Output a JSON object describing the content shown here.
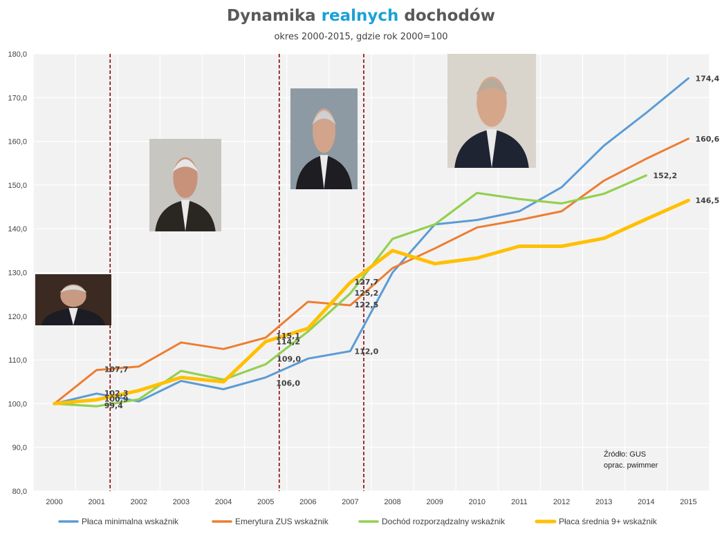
{
  "title": {
    "part1": "Dynamika ",
    "accent": "realnych",
    "part2": " dochodów"
  },
  "subtitle": "okres 2000-2015, gdzie rok 2000=100",
  "source": {
    "line1": "Źródło: GUS",
    "line2": "oprac. pwimmer"
  },
  "photos": [
    {
      "name": "portrait-photo-1"
    },
    {
      "name": "portrait-photo-2"
    },
    {
      "name": "portrait-photo-3"
    },
    {
      "name": "portrait-photo-4"
    }
  ],
  "chart_data": {
    "type": "line",
    "title": "Dynamika realnych dochodów",
    "subtitle": "okres 2000-2015, gdzie rok 2000=100",
    "xlabel": "",
    "ylabel": "",
    "ylim": [
      80,
      180
    ],
    "yticks": [
      "80,0",
      "90,0",
      "100,0",
      "110,0",
      "120,0",
      "130,0",
      "140,0",
      "150,0",
      "160,0",
      "170,0",
      "180,0"
    ],
    "categories": [
      "2000",
      "2001",
      "2002",
      "2003",
      "2004",
      "2005",
      "2006",
      "2007",
      "2008",
      "2009",
      "2010",
      "2011",
      "2012",
      "2013",
      "2014",
      "2015"
    ],
    "grid": true,
    "legend_position": "bottom",
    "vertical_markers_after": [
      "2001",
      "2005",
      "2007"
    ],
    "series": [
      {
        "name": "Płaca minimalna wskaźnik",
        "color": "#5b9bd5",
        "values": [
          100.0,
          102.3,
          100.5,
          105.2,
          103.3,
          106.0,
          110.3,
          112.0,
          130.0,
          141.0,
          142.0,
          144.0,
          149.5,
          159.0,
          166.5,
          174.4
        ],
        "labels": [
          [
            1,
            "102,3"
          ],
          [
            5,
            "106,0"
          ],
          [
            7,
            "112,0"
          ],
          [
            15,
            "174,4"
          ]
        ]
      },
      {
        "name": "Emerytura ZUS wskaźnik",
        "color": "#ed7d31",
        "values": [
          100.0,
          107.7,
          108.5,
          114.0,
          112.5,
          115.1,
          123.3,
          122.5,
          131.0,
          135.5,
          140.3,
          142.0,
          144.0,
          151.0,
          156.0,
          160.6
        ],
        "labels": [
          [
            1,
            "107,7"
          ],
          [
            5,
            "115,1"
          ],
          [
            7,
            "122,5"
          ],
          [
            15,
            "160,6"
          ]
        ]
      },
      {
        "name": "Dochód rozporządzalny wskaźnik",
        "color": "#92d050",
        "values": [
          100.0,
          99.4,
          101.0,
          107.5,
          105.5,
          109.0,
          116.5,
          125.2,
          137.7,
          141.0,
          148.2,
          146.8,
          145.8,
          148.0,
          152.2,
          null
        ],
        "labels": [
          [
            1,
            "99,4"
          ],
          [
            5,
            "109,0"
          ],
          [
            7,
            "125,2"
          ],
          [
            14,
            "152,2"
          ]
        ]
      },
      {
        "name": "Płaca średnia 9+ wskaźnik",
        "color": "#ffc000",
        "values": [
          100.0,
          100.9,
          103.0,
          106.0,
          105.0,
          114.2,
          117.2,
          127.7,
          135.0,
          132.0,
          133.3,
          136.0,
          136.0,
          137.8,
          142.2,
          146.5
        ],
        "labels": [
          [
            1,
            "100,9"
          ],
          [
            5,
            "114,2"
          ],
          [
            7,
            "127,7"
          ],
          [
            15,
            "146,5"
          ]
        ]
      }
    ]
  }
}
